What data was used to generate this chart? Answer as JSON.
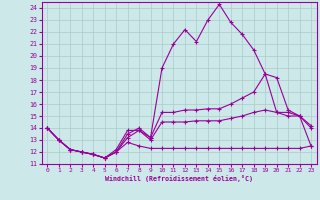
{
  "xlabel": "Windchill (Refroidissement éolien,°C)",
  "background_color": "#cce8e8",
  "line_color": "#990099",
  "grid_color": "#aacccc",
  "xlim": [
    -0.5,
    23.5
  ],
  "ylim": [
    11,
    24.5
  ],
  "yticks": [
    11,
    12,
    13,
    14,
    15,
    16,
    17,
    18,
    19,
    20,
    21,
    22,
    23,
    24
  ],
  "xticks": [
    0,
    1,
    2,
    3,
    4,
    5,
    6,
    7,
    8,
    9,
    10,
    11,
    12,
    13,
    14,
    15,
    16,
    17,
    18,
    19,
    20,
    21,
    22,
    23
  ],
  "lines": [
    {
      "x": [
        0,
        1,
        2,
        3,
        4,
        5,
        6,
        7,
        8,
        9,
        10,
        11,
        12,
        13,
        14,
        15,
        16,
        17,
        18,
        19,
        20,
        21,
        22,
        23
      ],
      "y": [
        14.0,
        13.0,
        12.2,
        12.0,
        11.8,
        11.5,
        12.0,
        13.5,
        14.0,
        13.2,
        19.0,
        21.0,
        22.2,
        21.2,
        23.0,
        24.3,
        22.8,
        21.8,
        20.5,
        18.5,
        18.2,
        15.5,
        15.0,
        14.0
      ]
    },
    {
      "x": [
        0,
        1,
        2,
        3,
        4,
        5,
        6,
        7,
        8,
        9,
        10,
        11,
        12,
        13,
        14,
        15,
        16,
        17,
        18,
        19,
        20,
        21,
        22,
        23
      ],
      "y": [
        14.0,
        13.0,
        12.2,
        12.0,
        11.8,
        11.5,
        12.2,
        13.8,
        13.8,
        13.2,
        15.3,
        15.3,
        15.5,
        15.5,
        15.6,
        15.6,
        16.0,
        16.5,
        17.0,
        18.5,
        15.3,
        15.3,
        15.0,
        14.2
      ]
    },
    {
      "x": [
        0,
        1,
        2,
        3,
        4,
        5,
        6,
        7,
        8,
        9,
        10,
        11,
        12,
        13,
        14,
        15,
        16,
        17,
        18,
        19,
        20,
        21,
        22,
        23
      ],
      "y": [
        14.0,
        13.0,
        12.2,
        12.0,
        11.8,
        11.5,
        12.0,
        13.2,
        13.8,
        13.0,
        14.5,
        14.5,
        14.5,
        14.6,
        14.6,
        14.6,
        14.8,
        15.0,
        15.3,
        15.5,
        15.3,
        15.0,
        15.0,
        12.5
      ]
    },
    {
      "x": [
        0,
        1,
        2,
        3,
        4,
        5,
        6,
        7,
        8,
        9,
        10,
        11,
        12,
        13,
        14,
        15,
        16,
        17,
        18,
        19,
        20,
        21,
        22,
        23
      ],
      "y": [
        14.0,
        13.0,
        12.2,
        12.0,
        11.8,
        11.5,
        12.0,
        12.8,
        12.5,
        12.3,
        12.3,
        12.3,
        12.3,
        12.3,
        12.3,
        12.3,
        12.3,
        12.3,
        12.3,
        12.3,
        12.3,
        12.3,
        12.3,
        12.5
      ]
    }
  ]
}
